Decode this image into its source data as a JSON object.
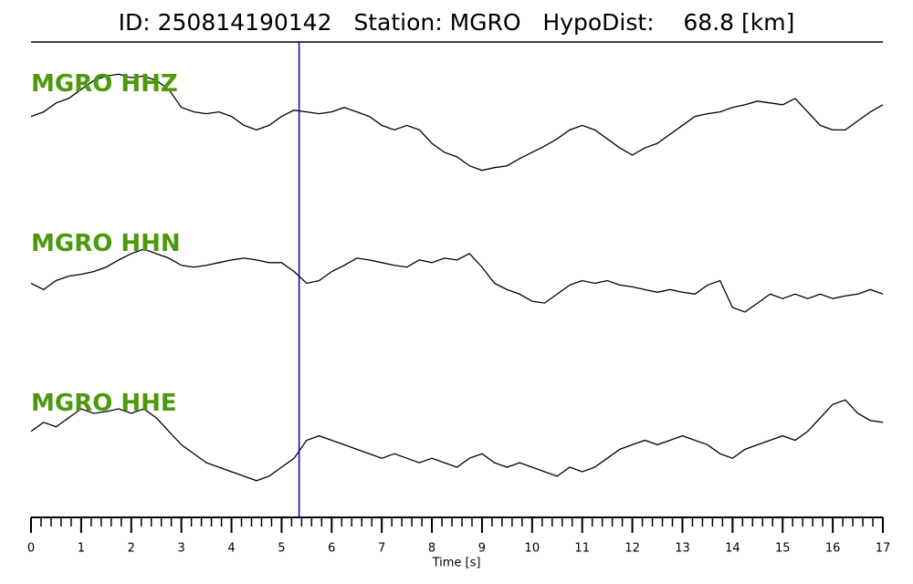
{
  "chart_data": {
    "type": "line",
    "title": "ID: 250814190142   Station: MGRO   HypoDist:    68.8 [km]",
    "xlabel": "Time [s]",
    "xlim": [
      0,
      17
    ],
    "xticks": [
      0,
      1,
      2,
      3,
      4,
      5,
      6,
      7,
      8,
      9,
      10,
      11,
      12,
      13,
      14,
      15,
      16,
      17
    ],
    "minor_tick_step": 0.2,
    "ylim": [
      -80,
      80
    ],
    "pick_time": 5.35,
    "pick_color": "#0000cc",
    "label_color": "#4c9a0a",
    "x": [
      0,
      0.25,
      0.5,
      0.75,
      1,
      1.25,
      1.5,
      1.75,
      2,
      2.25,
      2.5,
      2.75,
      3,
      3.25,
      3.5,
      3.75,
      4,
      4.25,
      4.5,
      4.75,
      5,
      5.25,
      5.5,
      5.75,
      6,
      6.25,
      6.5,
      6.75,
      7,
      7.25,
      7.5,
      7.75,
      8,
      8.25,
      8.5,
      8.75,
      9,
      9.25,
      9.5,
      9.75,
      10,
      10.25,
      10.5,
      10.75,
      11,
      11.25,
      11.5,
      11.75,
      12,
      12.25,
      12.5,
      12.75,
      13,
      13.25,
      13.5,
      13.75,
      14,
      14.25,
      14.5,
      14.75,
      15,
      15.25,
      15.5,
      15.75,
      16,
      16.25,
      16.5,
      16.75,
      17
    ],
    "series": [
      {
        "name": "MGRO HHZ",
        "color": "#000000",
        "values": [
          5,
          10,
          20,
          25,
          35,
          45,
          50,
          52,
          48,
          50,
          45,
          35,
          15,
          10,
          8,
          10,
          5,
          -5,
          -10,
          -5,
          5,
          12,
          10,
          8,
          10,
          15,
          10,
          5,
          -5,
          -10,
          -5,
          -10,
          -25,
          -35,
          -40,
          -50,
          -55,
          -52,
          -50,
          -42,
          -35,
          -28,
          -20,
          -10,
          -5,
          -10,
          -20,
          -30,
          -38,
          -30,
          -25,
          -15,
          -5,
          5,
          8,
          10,
          15,
          18,
          22,
          20,
          18,
          25,
          10,
          -5,
          -10,
          -10,
          0,
          10,
          18
        ]
      },
      {
        "name": "MGRO HHN",
        "color": "#000000",
        "values": [
          -3,
          -10,
          0,
          5,
          7,
          10,
          15,
          23,
          30,
          35,
          30,
          25,
          17,
          15,
          17,
          20,
          23,
          25,
          23,
          20,
          20,
          10,
          -3,
          0,
          10,
          17,
          25,
          23,
          20,
          17,
          15,
          23,
          20,
          25,
          23,
          30,
          15,
          -3,
          -10,
          -15,
          -23,
          -25,
          -15,
          -5,
          0,
          -3,
          0,
          -5,
          -7,
          -10,
          -13,
          -10,
          -13,
          -15,
          -5,
          0,
          -30,
          -35,
          -25,
          -15,
          -20,
          -15,
          -20,
          -15,
          -20,
          -17,
          -15,
          -10,
          -15
        ]
      },
      {
        "name": "MGRO HHE",
        "color": "#000000",
        "values": [
          10,
          20,
          15,
          25,
          35,
          30,
          32,
          35,
          30,
          35,
          25,
          10,
          -5,
          -15,
          -25,
          -30,
          -35,
          -40,
          -45,
          -40,
          -30,
          -20,
          0,
          5,
          0,
          -5,
          -10,
          -15,
          -20,
          -15,
          -20,
          -25,
          -20,
          -25,
          -30,
          -20,
          -15,
          -25,
          -30,
          -25,
          -30,
          -35,
          -40,
          -30,
          -35,
          -30,
          -20,
          -10,
          -5,
          0,
          -5,
          0,
          5,
          0,
          -5,
          -15,
          -20,
          -10,
          -5,
          0,
          5,
          0,
          10,
          25,
          40,
          45,
          30,
          22,
          20
        ]
      }
    ]
  }
}
